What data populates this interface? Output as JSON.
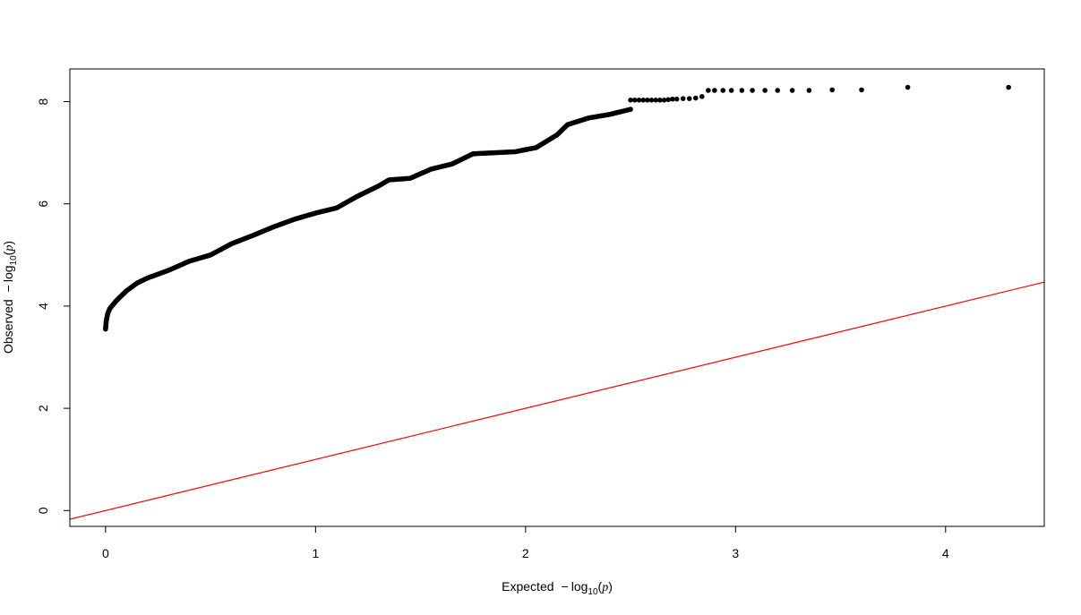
{
  "chart_data": {
    "type": "scatter",
    "title": "",
    "xlabel": {
      "prefix": "Expected",
      "minus": "−",
      "log": "log",
      "sub": "10",
      "var": "p"
    },
    "ylabel": {
      "prefix": "Observed",
      "minus": "−",
      "log": "log",
      "sub": "10",
      "var": "p"
    },
    "xlim": [
      -0.17,
      4.47
    ],
    "ylim": [
      -0.31,
      8.64
    ],
    "x_ticks": [
      0,
      1,
      2,
      3,
      4
    ],
    "y_ticks": [
      0,
      2,
      4,
      6,
      8
    ],
    "x_tick_labels": [
      "0",
      "1",
      "2",
      "3",
      "4"
    ],
    "y_tick_labels": [
      "0",
      "2",
      "4",
      "6",
      "8"
    ],
    "grid": false,
    "point_color": "#000000",
    "reference_line": {
      "slope": 1,
      "intercept": 0,
      "color": "#ff0000"
    },
    "curve_knots": [
      [
        0.0,
        3.55
      ],
      [
        0.003,
        3.7
      ],
      [
        0.01,
        3.85
      ],
      [
        0.02,
        3.95
      ],
      [
        0.05,
        4.1
      ],
      [
        0.1,
        4.3
      ],
      [
        0.15,
        4.45
      ],
      [
        0.2,
        4.55
      ],
      [
        0.3,
        4.7
      ],
      [
        0.4,
        4.88
      ],
      [
        0.5,
        5.0
      ],
      [
        0.6,
        5.22
      ],
      [
        0.7,
        5.38
      ],
      [
        0.8,
        5.55
      ],
      [
        0.9,
        5.7
      ],
      [
        1.0,
        5.82
      ],
      [
        1.1,
        5.92
      ],
      [
        1.2,
        6.15
      ],
      [
        1.3,
        6.35
      ],
      [
        1.35,
        6.47
      ],
      [
        1.45,
        6.5
      ],
      [
        1.55,
        6.68
      ],
      [
        1.65,
        6.78
      ],
      [
        1.75,
        6.98
      ],
      [
        1.85,
        7.0
      ],
      [
        1.95,
        7.02
      ],
      [
        2.05,
        7.1
      ],
      [
        2.15,
        7.35
      ],
      [
        2.2,
        7.55
      ],
      [
        2.3,
        7.68
      ],
      [
        2.4,
        7.75
      ],
      [
        2.5,
        7.85
      ]
    ],
    "tail_points": [
      [
        2.5,
        8.03
      ],
      [
        2.52,
        8.03
      ],
      [
        2.54,
        8.03
      ],
      [
        2.56,
        8.03
      ],
      [
        2.58,
        8.03
      ],
      [
        2.6,
        8.03
      ],
      [
        2.62,
        8.03
      ],
      [
        2.64,
        8.03
      ],
      [
        2.66,
        8.03
      ],
      [
        2.68,
        8.04
      ],
      [
        2.7,
        8.05
      ],
      [
        2.72,
        8.05
      ],
      [
        2.75,
        8.06
      ],
      [
        2.78,
        8.06
      ],
      [
        2.81,
        8.07
      ],
      [
        2.84,
        8.1
      ],
      [
        2.87,
        8.22
      ],
      [
        2.9,
        8.22
      ],
      [
        2.94,
        8.22
      ],
      [
        2.98,
        8.22
      ],
      [
        3.03,
        8.22
      ],
      [
        3.08,
        8.22
      ],
      [
        3.14,
        8.22
      ],
      [
        3.2,
        8.22
      ],
      [
        3.27,
        8.22
      ],
      [
        3.35,
        8.22
      ],
      [
        3.46,
        8.23
      ],
      [
        3.6,
        8.23
      ],
      [
        3.82,
        8.28
      ],
      [
        4.3,
        8.28
      ]
    ]
  }
}
